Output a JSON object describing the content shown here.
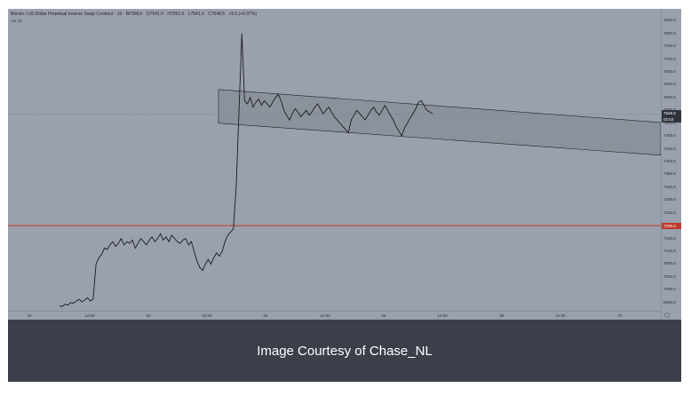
{
  "chart": {
    "symbol_title": "Bitcoin / US Dollar Perpetual Inverse Swap Contract · 15 · BITMEX",
    "ohlc": {
      "open": "O7541.0",
      "high": "H7552.0",
      "low": "L7541.0",
      "close": "C7548.5",
      "change": "+5.5 (+0.07%)"
    },
    "volume_label": "Vol 20",
    "colors": {
      "background": "#9aa0ad",
      "price_line": "#1a1c22",
      "channel_fill": "#8a8f99",
      "support_line": "#c0392b",
      "caption_bg": "#3a3f4a"
    },
    "price_ticks": [
      "7840.0",
      "7800.0",
      "7760.0",
      "7720.0",
      "7680.0",
      "7640.0",
      "7600.0",
      "7560.0",
      "7520.0",
      "7480.0",
      "7440.0",
      "7400.0",
      "7360.0",
      "7320.0",
      "7280.0",
      "7240.0",
      "7200.0",
      "7160.0",
      "7120.0",
      "7080.0",
      "7040.0",
      "7000.0",
      "6960.0"
    ],
    "current_price_tag": "7548.5",
    "countdown_tag": "02:53",
    "support_tag": "7200.0",
    "time_labels": [
      "22",
      "12:00",
      "23",
      "12:00",
      "24",
      "12:00",
      "25",
      "12:00",
      "26",
      "12:00",
      "27"
    ]
  },
  "chart_data": {
    "type": "line",
    "title": "Bitcoin / US Dollar Perpetual Inverse Swap Contract · 15 · BITMEX",
    "ylim": [
      6940,
      7860
    ],
    "support_level": 7200,
    "channel": {
      "upper": [
        [
          7625,
          7522
        ]
      ],
      "lower": [
        [
          7520,
          7420
        ]
      ]
    },
    "series": [
      {
        "values": [
          6950,
          6948,
          6955,
          6952,
          6960,
          6958,
          6965,
          6970,
          6962,
          6968,
          6975,
          6965,
          6972,
          7080,
          7100,
          7110,
          7130,
          7125,
          7140,
          7150,
          7135,
          7145,
          7160,
          7140,
          7150,
          7145,
          7155,
          7130,
          7145,
          7160,
          7150,
          7140,
          7155,
          7165,
          7150,
          7160,
          7175,
          7155,
          7165,
          7150,
          7170,
          7160,
          7150,
          7145,
          7155,
          7160,
          7140,
          7150,
          7120,
          7090,
          7070,
          7060,
          7080,
          7095,
          7080,
          7100,
          7115,
          7105,
          7120,
          7150,
          7170,
          7180,
          7190,
          7320,
          7560,
          7800,
          7590,
          7580,
          7600,
          7570,
          7585,
          7595,
          7575,
          7590,
          7580,
          7570,
          7585,
          7600,
          7610,
          7590,
          7560,
          7545,
          7530,
          7550,
          7565,
          7555,
          7540,
          7550,
          7560,
          7545,
          7555,
          7570,
          7580,
          7565,
          7550,
          7560,
          7570,
          7555,
          7540,
          7530,
          7520,
          7510,
          7500,
          7490,
          7530,
          7545,
          7560,
          7550,
          7540,
          7530,
          7545,
          7560,
          7570,
          7555,
          7545,
          7560,
          7575,
          7560,
          7545,
          7530,
          7510,
          7495,
          7480,
          7505,
          7520,
          7535,
          7550,
          7565,
          7585,
          7590,
          7575,
          7560,
          7555,
          7550
        ]
      }
    ]
  },
  "caption": "Image Courtesy of Chase_NL"
}
